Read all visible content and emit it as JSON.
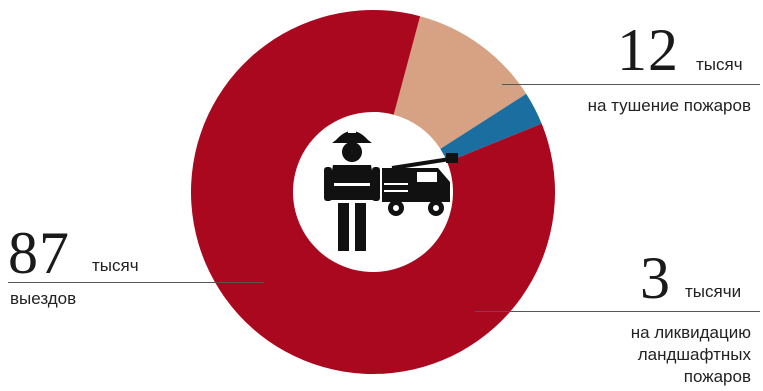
{
  "chart_data": {
    "type": "pie",
    "variant": "donut",
    "categories": [
      "выездов",
      "на тушение пожаров",
      "на ликвидацию ландшафтных пожаров"
    ],
    "values": [
      87,
      12,
      3
    ],
    "colors": [
      "#a9081f",
      "#d6a283",
      "#1a6fa0"
    ],
    "center_icon": "firefighter-and-fire-truck-icon"
  },
  "labels": {
    "left": {
      "value": "87",
      "unit": "тысяч",
      "desc": "выездов"
    },
    "top": {
      "value": "12",
      "unit": "тысяч",
      "desc": "на тушение пожаров"
    },
    "bottom": {
      "value": "3",
      "unit": "тысячи",
      "desc_lines": [
        "на ликвидацию",
        "ландшафтных",
        "пожаров"
      ]
    }
  }
}
